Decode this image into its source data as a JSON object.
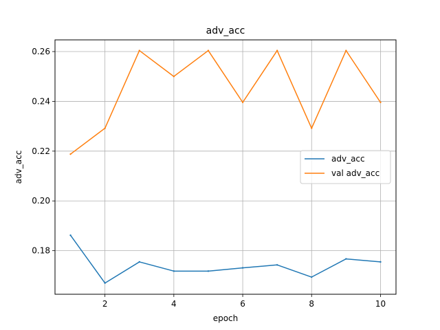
{
  "chart_data": {
    "type": "line",
    "title": "adv_acc",
    "xlabel": "epoch",
    "ylabel": "adv_acc",
    "x": [
      1,
      2,
      3,
      4,
      5,
      6,
      7,
      8,
      9,
      10
    ],
    "xlim": [
      0.55,
      10.45
    ],
    "ylim": [
      0.1625,
      0.2647
    ],
    "xticks": [
      2,
      4,
      6,
      8,
      10
    ],
    "yticks": [
      0.18,
      0.2,
      0.22,
      0.24,
      0.26
    ],
    "xtick_labels": [
      "2",
      "4",
      "6",
      "8",
      "10"
    ],
    "ytick_labels": [
      "0.18",
      "0.20",
      "0.22",
      "0.24",
      "0.26"
    ],
    "grid": true,
    "legend_position": "center-right",
    "series": [
      {
        "name": "adv_acc",
        "color": "#1f77b4",
        "values": [
          0.1862,
          0.167,
          0.1755,
          0.1718,
          0.1718,
          0.1731,
          0.1743,
          0.1694,
          0.1767,
          0.1755
        ]
      },
      {
        "name": "val adv_acc",
        "color": "#ff7f0e",
        "values": [
          0.2188,
          0.2292,
          0.2604,
          0.25,
          0.2604,
          0.2396,
          0.2604,
          0.2292,
          0.2604,
          0.2396
        ]
      }
    ]
  }
}
